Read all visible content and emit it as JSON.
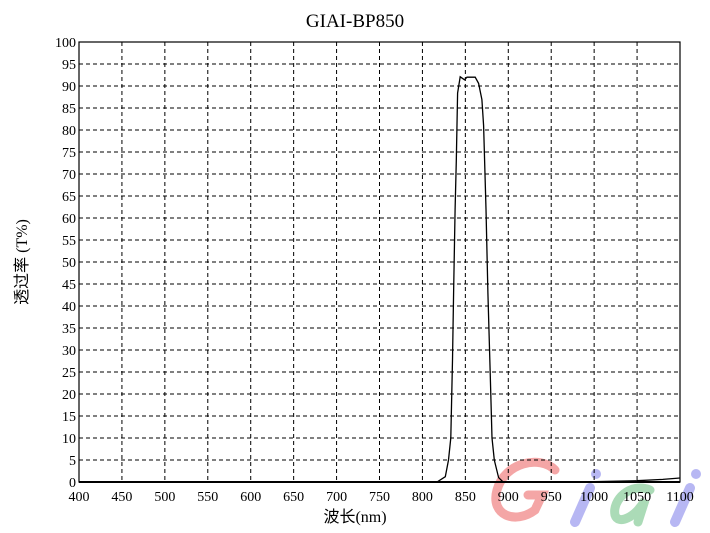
{
  "chart_data": {
    "type": "line",
    "title": "GIAI-BP850",
    "xlabel": "波长(nm)",
    "ylabel": "透过率 (T%)",
    "xlim": [
      400,
      1100
    ],
    "ylim": [
      0,
      100
    ],
    "xticks": [
      400,
      450,
      500,
      550,
      600,
      650,
      700,
      750,
      800,
      850,
      900,
      950,
      1000,
      1050,
      1100
    ],
    "yticks": [
      0,
      5,
      10,
      15,
      20,
      25,
      30,
      35,
      40,
      45,
      50,
      55,
      60,
      65,
      70,
      75,
      80,
      85,
      90,
      95,
      100
    ],
    "grid": true,
    "grid_style": "dashed",
    "line_color": "#000000",
    "series": [
      {
        "x": [
          400,
          800,
          817,
          826.6,
          830.4,
          833,
          835,
          836.3,
          838,
          839.4,
          841,
          844,
          849,
          851.9,
          861.5,
          865.4,
          869.3,
          871.3,
          874,
          876.2,
          879,
          881,
          883.7,
          888.7,
          894,
          950,
          1000,
          1050,
          1080,
          1100
        ],
        "y": [
          0,
          0,
          0,
          1.2,
          5,
          10,
          27.7,
          43,
          62,
          73,
          88.4,
          92.1,
          91.4,
          92,
          92,
          90.6,
          86.9,
          81,
          62,
          43,
          24,
          10,
          5,
          1,
          0,
          0,
          0.1,
          0.3,
          0.6,
          0.9
        ]
      }
    ]
  },
  "watermark": {
    "text": "Giai",
    "colors": [
      "#f08080",
      "#9999ee",
      "#88cc99",
      "#9999ee"
    ]
  }
}
